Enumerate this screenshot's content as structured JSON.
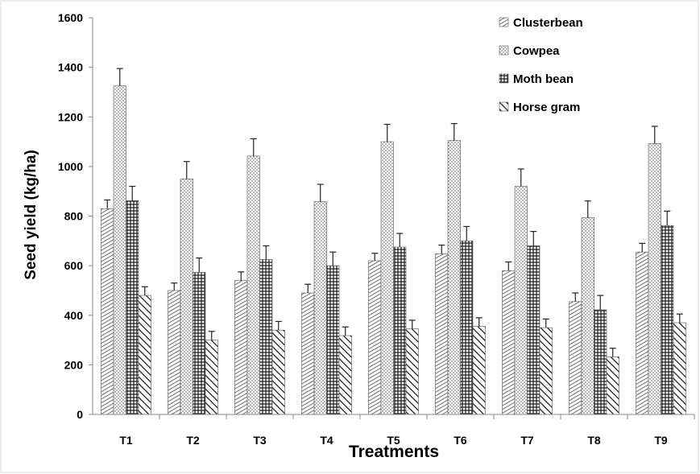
{
  "chart_data": {
    "type": "bar",
    "title": "",
    "xlabel": "Treatments",
    "ylabel": "Seed yield (kg/ha)",
    "ylim": [
      0,
      1600
    ],
    "yticks": [
      0,
      200,
      400,
      600,
      800,
      1000,
      1200,
      1400,
      1600
    ],
    "grid": false,
    "legend_position": "top-right",
    "categories": [
      "T1",
      "T2",
      "T3",
      "T4",
      "T5",
      "T6",
      "T7",
      "T8",
      "T9"
    ],
    "series": [
      {
        "name": "Clusterbean",
        "pattern": "diagonal-thin",
        "values": [
          830,
          500,
          540,
          490,
          620,
          648,
          580,
          455,
          655
        ],
        "errors": [
          35,
          30,
          35,
          35,
          30,
          35,
          35,
          35,
          35
        ]
      },
      {
        "name": "Cowpea",
        "pattern": "dots",
        "values": [
          1325,
          950,
          1042,
          858,
          1100,
          1105,
          920,
          793,
          1092
        ],
        "errors": [
          70,
          70,
          70,
          70,
          70,
          68,
          70,
          68,
          70
        ]
      },
      {
        "name": "Moth bean",
        "pattern": "crosshatch",
        "values": [
          862,
          573,
          625,
          600,
          675,
          700,
          680,
          422,
          762
        ],
        "errors": [
          58,
          58,
          55,
          55,
          55,
          58,
          58,
          58,
          58
        ]
      },
      {
        "name": "Horse gram",
        "pattern": "diagonal-thick",
        "values": [
          480,
          300,
          340,
          318,
          345,
          355,
          350,
          232,
          370
        ],
        "errors": [
          35,
          35,
          35,
          35,
          35,
          35,
          35,
          35,
          35
        ]
      }
    ]
  }
}
